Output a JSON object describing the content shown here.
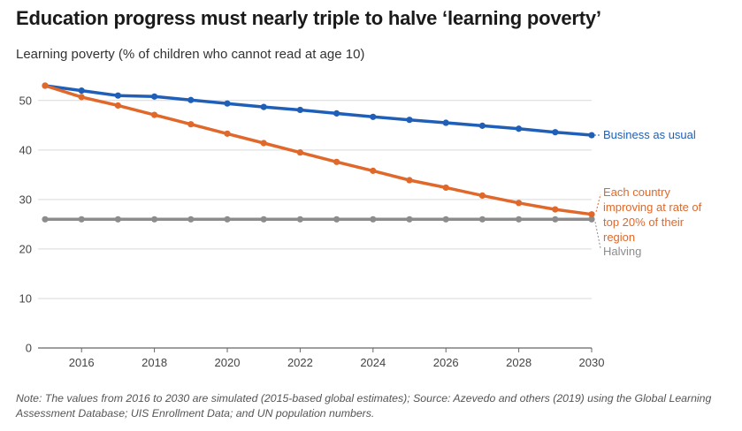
{
  "title": "Education progress must nearly triple to halve ‘learning poverty’",
  "subtitle": "Learning poverty (% of children who cannot read at age 10)",
  "note": "Note: The values from 2016 to 2030 are simulated (2015-based global estimates); Source: Azevedo and others (2019) using the Global Learning Assessment Database; UIS Enrollment Data; and UN population numbers.",
  "chart_data": {
    "type": "line",
    "title": "Education progress must nearly triple to halve ‘learning poverty’",
    "ylabel": "Learning poverty (% of children who cannot read at age 10)",
    "x": [
      2015,
      2016,
      2017,
      2018,
      2019,
      2020,
      2021,
      2022,
      2023,
      2024,
      2025,
      2026,
      2027,
      2028,
      2029,
      2030
    ],
    "xlim": [
      2015,
      2030
    ],
    "ylim": [
      0,
      53
    ],
    "xticks": [
      "2016",
      "2018",
      "2020",
      "2022",
      "2024",
      "2026",
      "2028",
      "2030"
    ],
    "yticks": [
      "0",
      "10",
      "20",
      "30",
      "40",
      "50"
    ],
    "grid": "horizontal",
    "series": [
      {
        "name": "Business as usual",
        "color": "#1f5fb8",
        "values": [
          53.0,
          52.0,
          51.0,
          50.8,
          50.1,
          49.4,
          48.7,
          48.1,
          47.4,
          46.7,
          46.1,
          45.5,
          44.9,
          44.3,
          43.6,
          43.0
        ]
      },
      {
        "name": "Each country improving at rate of top 20% of their region",
        "name_lines": [
          "Each country",
          "improving at rate of",
          "top 20% of their",
          "region"
        ],
        "color": "#e0682a",
        "values": [
          53.0,
          50.7,
          49.0,
          47.1,
          45.2,
          43.3,
          41.4,
          39.5,
          37.6,
          35.8,
          33.9,
          32.4,
          30.8,
          29.3,
          28.0,
          27.0
        ]
      },
      {
        "name": "Halving",
        "color": "#8c8c8c",
        "values": [
          26.0,
          26.0,
          26.0,
          26.0,
          26.0,
          26.0,
          26.0,
          26.0,
          26.0,
          26.0,
          26.0,
          26.0,
          26.0,
          26.0,
          26.0,
          26.0
        ]
      }
    ]
  }
}
